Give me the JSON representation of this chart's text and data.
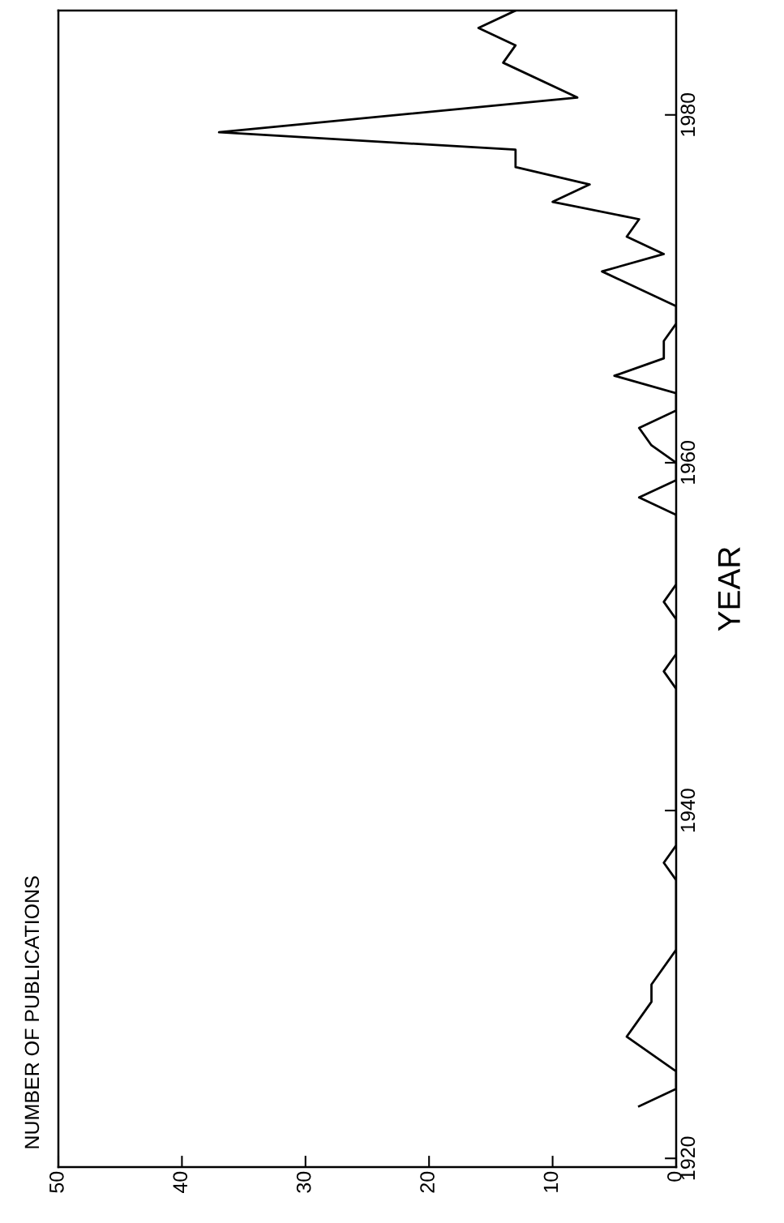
{
  "chart_data": {
    "type": "line",
    "annotations": [
      "NUMBER OF PUBLICATIONS"
    ],
    "ylabel": "YEAR",
    "x": [
      3,
      0,
      0,
      4,
      2,
      2,
      0,
      0,
      1,
      0,
      0,
      1,
      0,
      0,
      1,
      0,
      0,
      3,
      0,
      0,
      2,
      3,
      0,
      0,
      5,
      1,
      1,
      0,
      0,
      6,
      1,
      4,
      3,
      10,
      7,
      13,
      13,
      37,
      8,
      14,
      13,
      16,
      13
    ],
    "series": [
      {
        "color": "#000000",
        "values": [
          1923,
          1924,
          1925,
          1927,
          1929,
          1930,
          1932,
          1936,
          1937,
          1938,
          1947,
          1948,
          1949,
          1951,
          1952,
          1953,
          1957,
          1958,
          1959,
          1960,
          1961,
          1962,
          1963,
          1964,
          1965,
          1966,
          1967,
          1968,
          1969,
          1971,
          1972,
          1973,
          1974,
          1975,
          1976,
          1977,
          1978,
          1979,
          1981,
          1983,
          1984,
          1985,
          1986
        ]
      }
    ],
    "xlim": [
      50,
      0
    ],
    "xticks": [
      50,
      40,
      30,
      20,
      10,
      0
    ],
    "ylim": [
      1919.5,
      1986
    ],
    "yticks": [
      1920,
      1940,
      1960,
      1980
    ],
    "line_style": "solid"
  }
}
